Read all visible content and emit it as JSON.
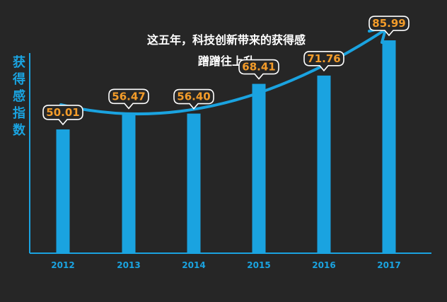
{
  "chart_data": {
    "type": "bar",
    "title": [
      "这五年，科技创新带来的获得感",
      "蹭蹭往上升"
    ],
    "ylabel": "获得感指数",
    "xlabel": "",
    "categories": [
      "2012",
      "2013",
      "2014",
      "2015",
      "2016",
      "2017"
    ],
    "values": [
      50.01,
      56.47,
      56.4,
      68.41,
      71.76,
      85.99
    ],
    "value_labels": [
      "50.01",
      "56.47",
      "56.40",
      "68.41",
      "71.76",
      "85.99"
    ],
    "ylim": [
      0,
      100
    ],
    "grid": false,
    "colors": {
      "background": "#262626",
      "bar": "#1aa3e0",
      "axis": "#1aa3e0",
      "label_text": "#f39c2a",
      "label_bubble": "#ffffff",
      "title": "#ffffff",
      "trend_arrow": "#1aa3e0"
    }
  }
}
